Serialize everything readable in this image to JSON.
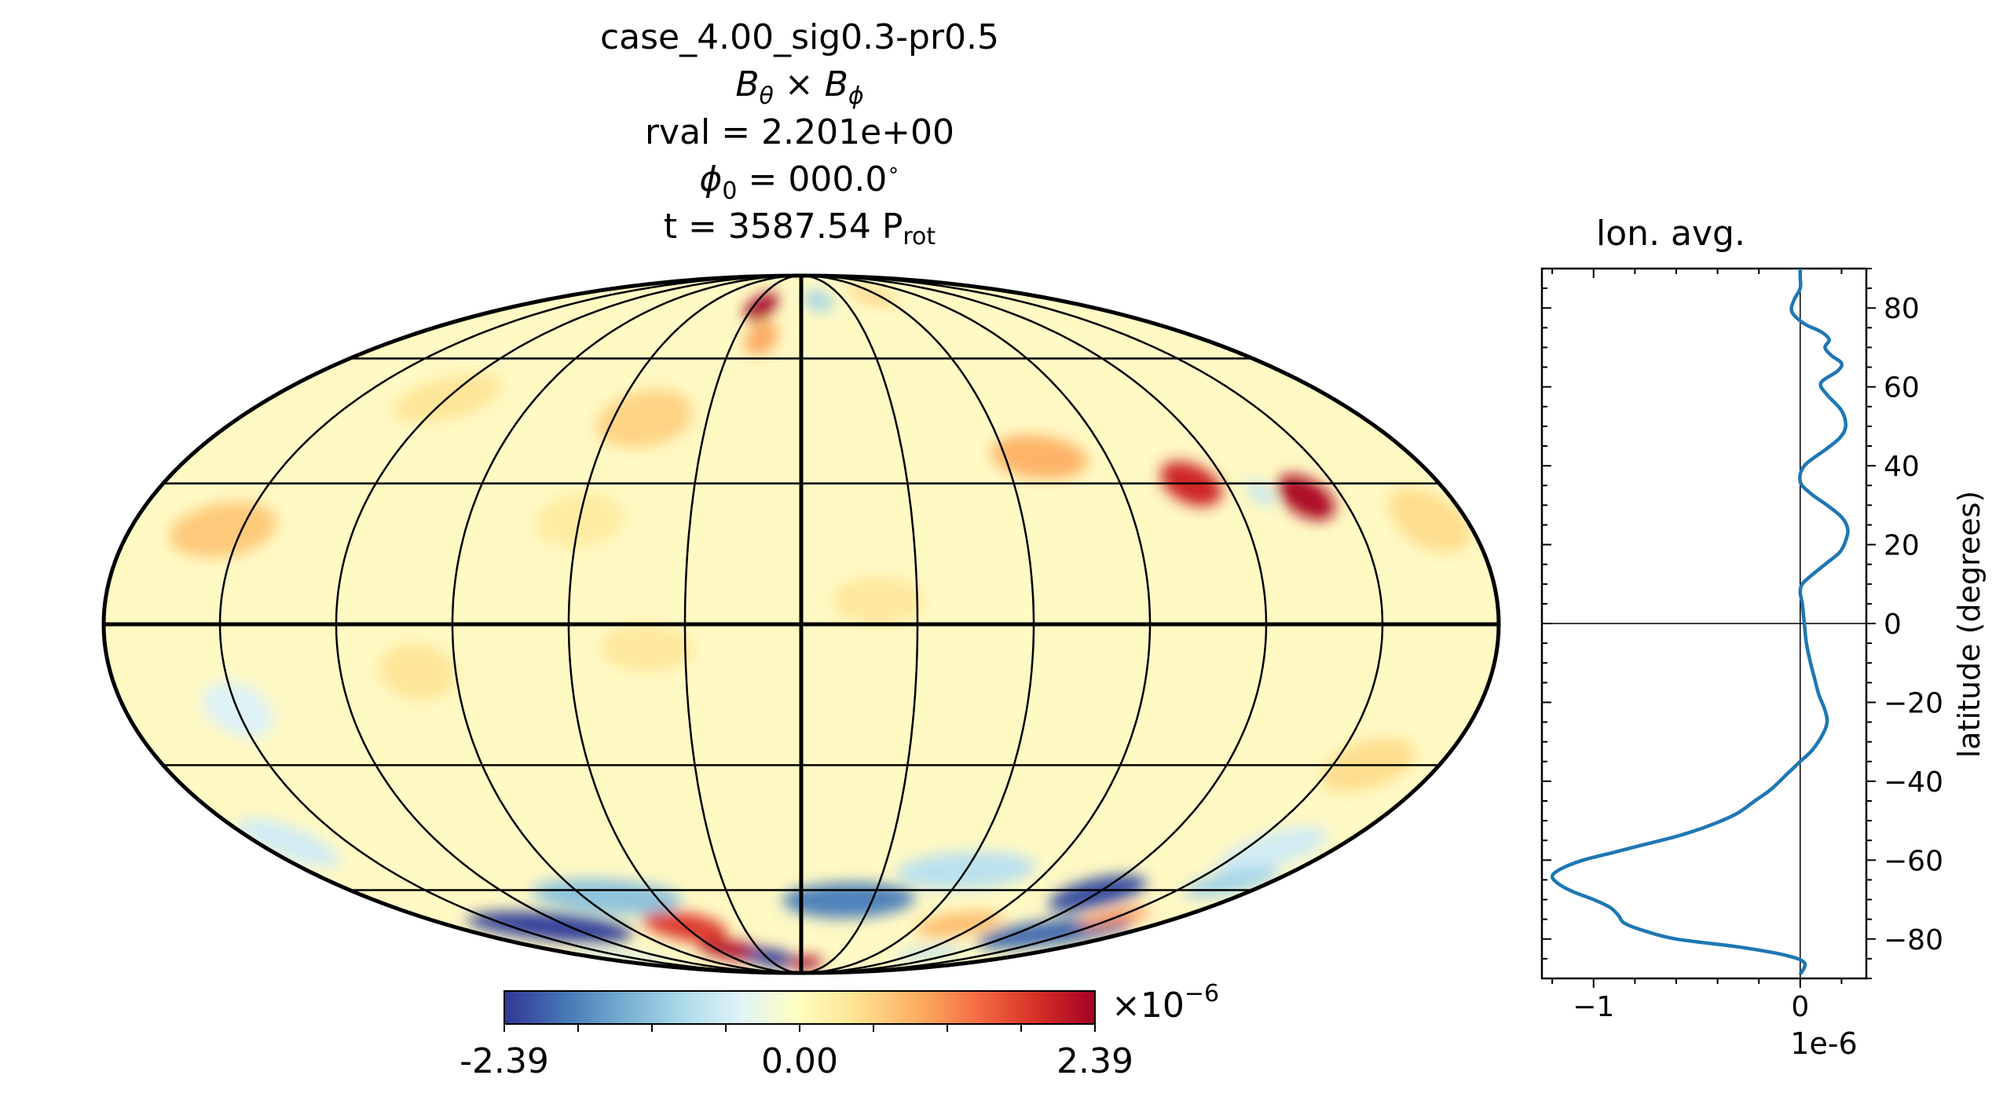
{
  "header": {
    "case": "case_4.00_sig0.3-pr0.5",
    "quantity": {
      "b1": "B",
      "s1": "θ",
      "times": " × ",
      "b2": "B",
      "s2": "ϕ"
    },
    "rval": "rval = 2.201e+00",
    "phi0": {
      "sym": "ϕ",
      "sub": "0",
      "rest": " = 000.0",
      "deg": "∘"
    },
    "time": {
      "main": "t = 3587.54 P",
      "sub": "rot"
    }
  },
  "colorbar": {
    "min_label": "-2.39",
    "mid_label": "0.00",
    "max_label": "2.39",
    "scale_base": "×10",
    "scale_exp": "−6",
    "min": -2.39,
    "max": 2.39,
    "colors": [
      "#313695",
      "#4575b4",
      "#74add1",
      "#abd9e9",
      "#e0f3f8",
      "#ffffbf",
      "#fee090",
      "#fdae61",
      "#f46d43",
      "#d73027",
      "#a50026"
    ]
  },
  "map": {
    "projection": "mollweide",
    "background": "#fff9c4",
    "meridian_lons": [
      -180,
      -150,
      -120,
      -90,
      -60,
      -30,
      0,
      30,
      60,
      90,
      120,
      150,
      180
    ],
    "parallel_lats": [
      -60,
      -30,
      0,
      30,
      60
    ],
    "features": [
      {
        "lon": -25,
        "lat": 76,
        "a": 9,
        "b": 5,
        "v": 2.39
      },
      {
        "lon": -18,
        "lat": 66,
        "a": 7,
        "b": 5,
        "v": 1.0
      },
      {
        "lon": 12,
        "lat": 78,
        "a": 10,
        "b": 4,
        "v": -1.0
      },
      {
        "lon": 55,
        "lat": 80,
        "a": 14,
        "b": 4,
        "v": 0.6
      },
      {
        "lon": -50,
        "lat": 45,
        "a": 15,
        "b": 7,
        "v": 0.6
      },
      {
        "lon": -120,
        "lat": 50,
        "a": 16,
        "b": 6,
        "v": 0.4
      },
      {
        "lon": 70,
        "lat": 36,
        "a": 14,
        "b": 5,
        "v": 0.9
      },
      {
        "lon": 110,
        "lat": 30,
        "a": 8,
        "b": 5,
        "v": 2.0
      },
      {
        "lon": 140,
        "lat": 27,
        "a": 7,
        "b": 5,
        "v": 2.3
      },
      {
        "lon": 128,
        "lat": 28,
        "a": 3,
        "b": 3,
        "v": -0.7
      },
      {
        "lon": -155,
        "lat": 20,
        "a": 14,
        "b": 6,
        "v": 0.7
      },
      {
        "lon": 170,
        "lat": 22,
        "a": 10,
        "b": 7,
        "v": 0.5
      },
      {
        "lon": -60,
        "lat": 22,
        "a": 12,
        "b": 6,
        "v": 0.3
      },
      {
        "lon": -150,
        "lat": -18,
        "a": 9,
        "b": 6,
        "v": -0.5
      },
      {
        "lon": -100,
        "lat": -10,
        "a": 10,
        "b": 6,
        "v": 0.4
      },
      {
        "lon": -40,
        "lat": -5,
        "a": 12,
        "b": 5,
        "v": 0.35
      },
      {
        "lon": 20,
        "lat": 5,
        "a": 12,
        "b": 5,
        "v": 0.35
      },
      {
        "lon": 160,
        "lat": -30,
        "a": 12,
        "b": 6,
        "v": 0.5
      },
      {
        "lon": -170,
        "lat": -48,
        "a": 12,
        "b": 6,
        "v": -0.6
      },
      {
        "lon": 160,
        "lat": -50,
        "a": 14,
        "b": 6,
        "v": -0.6
      },
      {
        "lon": 60,
        "lat": -55,
        "a": 25,
        "b": 5,
        "v": -0.8
      },
      {
        "lon": -80,
        "lat": -62,
        "a": 30,
        "b": 5,
        "v": -1.2
      },
      {
        "lon": 20,
        "lat": -63,
        "a": 28,
        "b": 5,
        "v": -1.8
      },
      {
        "lon": 120,
        "lat": -61,
        "a": 16,
        "b": 5,
        "v": -2.2
      },
      {
        "lon": 165,
        "lat": -58,
        "a": 14,
        "b": 4,
        "v": -1.0
      },
      {
        "lon": -130,
        "lat": -71,
        "a": 38,
        "b": 5,
        "v": -2.3
      },
      {
        "lon": 140,
        "lat": -73,
        "a": 35,
        "b": 5,
        "v": -2.0
      },
      {
        "lon": -60,
        "lat": -71,
        "a": 20,
        "b": 5,
        "v": 1.8
      },
      {
        "lon": -50,
        "lat": -79,
        "a": 22,
        "b": 4,
        "v": 2.3
      },
      {
        "lon": -28,
        "lat": -82,
        "a": 20,
        "b": 4,
        "v": -2.39
      },
      {
        "lon": 5,
        "lat": -84,
        "a": 18,
        "b": 3,
        "v": 2.39
      },
      {
        "lon": 80,
        "lat": -70,
        "a": 20,
        "b": 4,
        "v": 0.8
      },
      {
        "lon": 150,
        "lat": -68,
        "a": 12,
        "b": 3,
        "v": 1.2
      },
      {
        "lon": 100,
        "lat": -80,
        "a": 20,
        "b": 3,
        "v": -0.8
      },
      {
        "lon": -160,
        "lat": -82,
        "a": 30,
        "b": 3,
        "v": -0.7
      }
    ]
  },
  "lon_avg": {
    "title": "lon. avg.",
    "ylabel": "latitude (degrees)",
    "offset_label": "1e-6",
    "xtick_labels": [
      "−1",
      "0"
    ],
    "ytick_labels": [
      "−80",
      "−60",
      "−40",
      "−20",
      "0",
      "20",
      "40",
      "60",
      "80"
    ],
    "line_color": "#1f77b4"
  },
  "chart_data": {
    "type": "line",
    "title": "lon. avg.",
    "xlabel": "",
    "ylabel": "latitude (degrees)",
    "x_scale": "1e-6",
    "xlim": [
      -1.25e-06,
      3.2e-07
    ],
    "ylim": [
      -90,
      90
    ],
    "xticks": [
      -1e-06,
      0
    ],
    "yticks": [
      -80,
      -60,
      -40,
      -20,
      0,
      20,
      40,
      60,
      80
    ],
    "series": [
      {
        "lat": [
          -89,
          -86,
          -84,
          -82,
          -80,
          -78,
          -76,
          -74,
          -72,
          -70,
          -68,
          -66,
          -64,
          -62,
          -60,
          -58,
          -56,
          -54,
          -52,
          -50,
          -48,
          -45,
          -42,
          -38,
          -35,
          -32,
          -28,
          -25,
          -22,
          -18,
          -14,
          -10,
          -5,
          0,
          5,
          8,
          10,
          12,
          15,
          18,
          21,
          24,
          27,
          30,
          33,
          36,
          40,
          44,
          47,
          50,
          54,
          58,
          61,
          64,
          66,
          68,
          70,
          72,
          74,
          76,
          79,
          82,
          85,
          88,
          90
        ],
        "value": [
          0.0,
          2e-08,
          -8e-08,
          -3e-07,
          -6e-07,
          -7.5e-07,
          -8.5e-07,
          -8.8e-07,
          -9.2e-07,
          -1e-06,
          -1.1e-06,
          -1.17e-06,
          -1.2e-06,
          -1.15e-06,
          -1.05e-06,
          -9e-07,
          -7.5e-07,
          -6e-07,
          -4.8e-07,
          -3.8e-07,
          -3e-07,
          -2.2e-07,
          -1.4e-07,
          -6e-08,
          0.0,
          6e-08,
          1.1e-07,
          1.3e-07,
          1.2e-07,
          9e-08,
          7e-08,
          5e-08,
          3e-08,
          2e-08,
          1e-08,
          0.0,
          1e-08,
          5e-08,
          1.2e-07,
          1.9e-07,
          2.2e-07,
          2.3e-07,
          2e-07,
          1.3e-07,
          5e-08,
          0.0,
          2e-08,
          1.2e-07,
          1.9e-07,
          2.2e-07,
          2e-07,
          1.3e-07,
          1e-07,
          1.8e-07,
          2e-07,
          1.5e-07,
          1.2e-07,
          1.4e-07,
          1e-07,
          2e-08,
          -4e-08,
          -3e-08,
          0.0,
          0.0,
          0.0
        ]
      }
    ],
    "colorbar": {
      "min": -2.39e-06,
      "max": 2.39e-06,
      "ticks": [
        "-2.39",
        "0.00",
        "2.39"
      ],
      "colormap": "RdYlBu_r"
    }
  }
}
